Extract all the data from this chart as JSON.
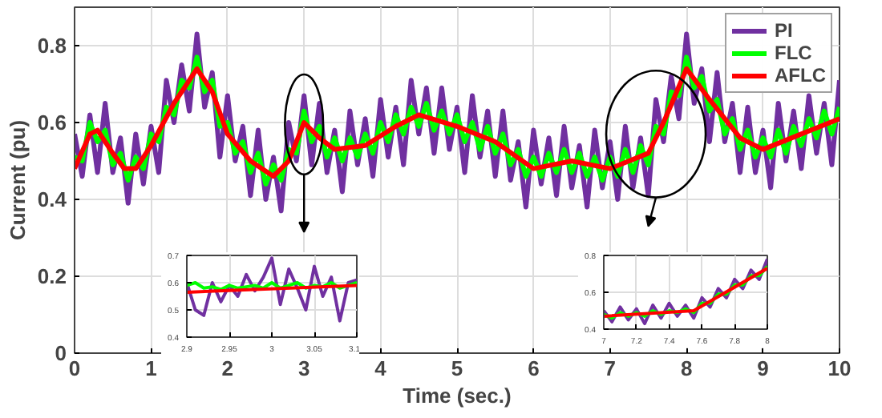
{
  "chart_data": [
    {
      "type": "line",
      "xlabel": "Time (sec.)",
      "ylabel": "Current (pu)",
      "xlim": [
        0,
        10
      ],
      "ylim": [
        0,
        0.9
      ],
      "xticks": [
        0,
        1,
        2,
        3,
        4,
        5,
        6,
        7,
        8,
        9,
        10
      ],
      "yticks": [
        0,
        0.2,
        0.4,
        0.6,
        0.8
      ],
      "grid": true,
      "legend": "top right",
      "line_style": "solid",
      "x": [
        0,
        0.1,
        0.2,
        0.3,
        0.4,
        0.5,
        0.6,
        0.7,
        0.8,
        0.9,
        1,
        1.1,
        1.2,
        1.3,
        1.4,
        1.5,
        1.6,
        1.7,
        1.8,
        1.9,
        2,
        2.1,
        2.2,
        2.3,
        2.4,
        2.5,
        2.6,
        2.7,
        2.8,
        2.9,
        3,
        3.1,
        3.2,
        3.3,
        3.4,
        3.5,
        3.6,
        3.7,
        3.8,
        3.9,
        4,
        4.1,
        4.2,
        4.3,
        4.4,
        4.5,
        4.6,
        4.7,
        4.8,
        4.9,
        5,
        5.1,
        5.2,
        5.3,
        5.4,
        5.5,
        5.6,
        5.7,
        5.8,
        5.9,
        6,
        6.1,
        6.2,
        6.3,
        6.4,
        6.5,
        6.6,
        6.7,
        6.8,
        6.9,
        7,
        7.1,
        7.2,
        7.3,
        7.4,
        7.5,
        7.6,
        7.7,
        7.8,
        7.9,
        8,
        8.1,
        8.2,
        8.3,
        8.4,
        8.5,
        8.6,
        8.7,
        8.8,
        8.9,
        9,
        9.1,
        9.2,
        9.3,
        9.4,
        9.5,
        9.6,
        9.7,
        9.8,
        9.9,
        10
      ],
      "series": [
        {
          "name": "PI",
          "color": "#7030a0",
          "values": [
            0.57,
            0.46,
            0.62,
            0.47,
            0.65,
            0.47,
            0.56,
            0.39,
            0.57,
            0.44,
            0.59,
            0.47,
            0.71,
            0.6,
            0.75,
            0.63,
            0.83,
            0.64,
            0.73,
            0.51,
            0.67,
            0.5,
            0.59,
            0.41,
            0.58,
            0.4,
            0.51,
            0.37,
            0.6,
            0.5,
            0.67,
            0.49,
            0.65,
            0.47,
            0.58,
            0.42,
            0.63,
            0.49,
            0.61,
            0.46,
            0.66,
            0.51,
            0.64,
            0.49,
            0.71,
            0.57,
            0.69,
            0.52,
            0.69,
            0.53,
            0.64,
            0.47,
            0.67,
            0.51,
            0.63,
            0.46,
            0.63,
            0.45,
            0.55,
            0.38,
            0.58,
            0.44,
            0.56,
            0.41,
            0.59,
            0.43,
            0.54,
            0.38,
            0.58,
            0.43,
            0.55,
            0.4,
            0.59,
            0.43,
            0.56,
            0.41,
            0.66,
            0.55,
            0.72,
            0.61,
            0.83,
            0.65,
            0.74,
            0.55,
            0.73,
            0.55,
            0.65,
            0.47,
            0.64,
            0.47,
            0.58,
            0.43,
            0.65,
            0.5,
            0.63,
            0.48,
            0.67,
            0.52,
            0.65,
            0.49,
            0.71
          ]
        },
        {
          "name": "FLC",
          "color": "#00ff00",
          "values": [
            0.51,
            0.5,
            0.6,
            0.55,
            0.58,
            0.49,
            0.52,
            0.45,
            0.51,
            0.48,
            0.57,
            0.55,
            0.64,
            0.62,
            0.71,
            0.69,
            0.77,
            0.68,
            0.71,
            0.59,
            0.6,
            0.52,
            0.55,
            0.47,
            0.52,
            0.44,
            0.49,
            0.45,
            0.53,
            0.52,
            0.63,
            0.55,
            0.59,
            0.51,
            0.56,
            0.5,
            0.56,
            0.51,
            0.57,
            0.52,
            0.6,
            0.55,
            0.62,
            0.57,
            0.64,
            0.59,
            0.65,
            0.58,
            0.63,
            0.57,
            0.62,
            0.55,
            0.6,
            0.53,
            0.59,
            0.52,
            0.57,
            0.49,
            0.53,
            0.46,
            0.51,
            0.46,
            0.52,
            0.47,
            0.53,
            0.47,
            0.52,
            0.46,
            0.51,
            0.45,
            0.51,
            0.46,
            0.53,
            0.47,
            0.54,
            0.49,
            0.59,
            0.57,
            0.68,
            0.67,
            0.77,
            0.69,
            0.72,
            0.63,
            0.66,
            0.57,
            0.61,
            0.53,
            0.58,
            0.51,
            0.56,
            0.51,
            0.58,
            0.52,
            0.59,
            0.54,
            0.61,
            0.56,
            0.63,
            0.57,
            0.64
          ]
        },
        {
          "name": "AFLC",
          "color": "#ff0000",
          "x": [
            0,
            0.2,
            0.3,
            0.5,
            0.65,
            0.8,
            1,
            1.3,
            1.6,
            1.8,
            2,
            2.3,
            2.6,
            2.8,
            3,
            3.2,
            3.4,
            3.8,
            4.2,
            4.5,
            5,
            5.5,
            6,
            6.5,
            7,
            7.5,
            7.7,
            8,
            8.3,
            8.7,
            9,
            9.5,
            10
          ],
          "values": [
            0.48,
            0.57,
            0.58,
            0.52,
            0.48,
            0.48,
            0.54,
            0.65,
            0.74,
            0.68,
            0.57,
            0.5,
            0.46,
            0.5,
            0.6,
            0.56,
            0.53,
            0.54,
            0.59,
            0.62,
            0.59,
            0.55,
            0.48,
            0.5,
            0.48,
            0.52,
            0.6,
            0.74,
            0.66,
            0.56,
            0.53,
            0.57,
            0.61
          ]
        }
      ]
    },
    {
      "type": "line",
      "xlim": [
        2.9,
        3.1
      ],
      "ylim": [
        0.4,
        0.7
      ],
      "xticks": [
        2.9,
        2.95,
        3,
        3.05,
        3.1
      ],
      "yticks": [
        0.4,
        0.5,
        0.6,
        0.7
      ],
      "grid": true,
      "x": [
        2.9,
        2.91,
        2.92,
        2.93,
        2.94,
        2.95,
        2.96,
        2.97,
        2.98,
        2.99,
        3,
        3.01,
        3.02,
        3.03,
        3.04,
        3.05,
        3.06,
        3.07,
        3.08,
        3.09,
        3.1
      ],
      "series": [
        {
          "color": "#7030a0",
          "values": [
            0.6,
            0.5,
            0.48,
            0.6,
            0.53,
            0.59,
            0.55,
            0.63,
            0.57,
            0.62,
            0.69,
            0.52,
            0.65,
            0.58,
            0.5,
            0.66,
            0.55,
            0.62,
            0.46,
            0.6,
            0.61
          ]
        },
        {
          "color": "#00ff00",
          "values": [
            0.59,
            0.6,
            0.58,
            0.585,
            0.575,
            0.59,
            0.58,
            0.585,
            0.59,
            0.58,
            0.6,
            0.58,
            0.59,
            0.6,
            0.58,
            0.59,
            0.585,
            0.6,
            0.58,
            0.59,
            0.6
          ]
        },
        {
          "color": "#ff0000",
          "x": [
            2.9,
            3.1
          ],
          "values": [
            0.565,
            0.59
          ]
        }
      ]
    },
    {
      "type": "line",
      "xlim": [
        7,
        8
      ],
      "ylim": [
        0.4,
        0.8
      ],
      "xticks": [
        7,
        7.2,
        7.4,
        7.6,
        7.8,
        8
      ],
      "yticks": [
        0.4,
        0.6,
        0.8
      ],
      "grid": true,
      "x": [
        7,
        7.05,
        7.1,
        7.15,
        7.2,
        7.25,
        7.3,
        7.35,
        7.4,
        7.45,
        7.5,
        7.55,
        7.6,
        7.65,
        7.7,
        7.75,
        7.8,
        7.85,
        7.9,
        7.95,
        8
      ],
      "series": [
        {
          "color": "#7030a0",
          "values": [
            0.5,
            0.44,
            0.52,
            0.45,
            0.51,
            0.43,
            0.53,
            0.46,
            0.54,
            0.47,
            0.53,
            0.46,
            0.57,
            0.52,
            0.62,
            0.57,
            0.67,
            0.62,
            0.72,
            0.67,
            0.78
          ]
        },
        {
          "color": "#00ff00",
          "values": [
            0.48,
            0.46,
            0.49,
            0.47,
            0.49,
            0.47,
            0.5,
            0.48,
            0.5,
            0.49,
            0.51,
            0.49,
            0.54,
            0.54,
            0.59,
            0.59,
            0.64,
            0.64,
            0.69,
            0.69,
            0.74
          ]
        },
        {
          "color": "#ff0000",
          "x": [
            7,
            7.55,
            8
          ],
          "values": [
            0.47,
            0.5,
            0.73
          ]
        }
      ]
    }
  ]
}
